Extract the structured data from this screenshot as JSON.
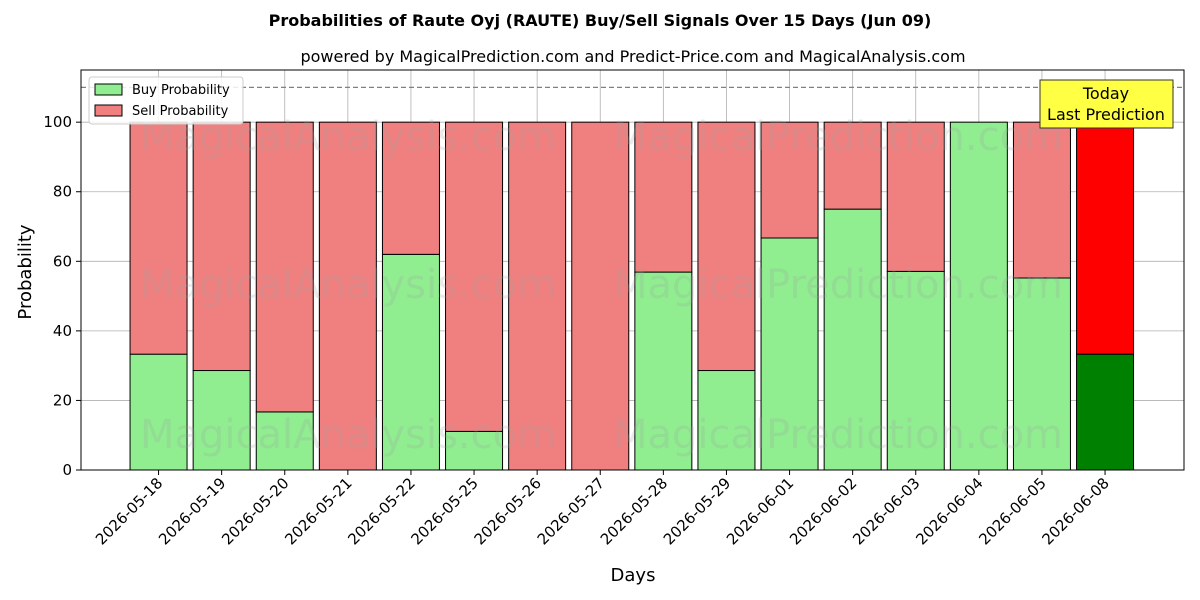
{
  "chart_data": {
    "type": "bar",
    "stacked": true,
    "title": "Probabilities of Raute Oyj (RAUTE) Buy/Sell Signals Over 15 Days (Jun 09)",
    "subtitle": "powered by MagicalPrediction.com and Predict-Price.com and MagicalAnalysis.com",
    "xlabel": "Days",
    "ylabel": "Probability",
    "ylim": [
      0,
      115
    ],
    "yticks": [
      0,
      20,
      40,
      60,
      80,
      100
    ],
    "reference_line": 110,
    "grid": true,
    "legend_position": "top-left",
    "categories": [
      "2026-05-18",
      "2026-05-19",
      "2026-05-20",
      "2026-05-21",
      "2026-05-22",
      "2026-05-25",
      "2026-05-26",
      "2026-05-27",
      "2026-05-28",
      "2026-05-29",
      "2026-06-01",
      "2026-06-02",
      "2026-06-03",
      "2026-06-04",
      "2026-06-05",
      "2026-06-08"
    ],
    "series": [
      {
        "name": "Buy Probability",
        "color": "#90ee90",
        "values": [
          33.3,
          28.6,
          16.7,
          0,
          62.0,
          11.1,
          0,
          0,
          56.9,
          28.6,
          66.7,
          75.0,
          57.1,
          100,
          55.2,
          33.3
        ]
      },
      {
        "name": "Sell Probability",
        "color": "#f08080",
        "values": [
          66.7,
          71.4,
          83.3,
          100,
          38.0,
          88.9,
          100,
          100,
          43.1,
          71.4,
          33.3,
          25.0,
          42.9,
          0,
          44.8,
          66.7
        ]
      }
    ],
    "highlight": {
      "index": 15,
      "buy_color": "#008000",
      "sell_color": "#ff0000"
    },
    "annotation": {
      "line1": "Today",
      "line2": "Last Prediction",
      "bg": "#ffff44"
    },
    "watermarks": [
      "MagicalAnalysis.com",
      "MagicalPrediction.com"
    ]
  }
}
